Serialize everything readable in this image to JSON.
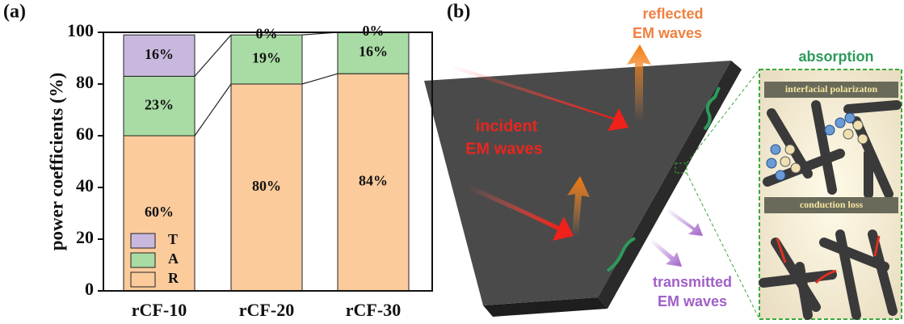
{
  "chart_data": {
    "type": "bar",
    "stacked": true,
    "panel_label": "(a)",
    "ylabel": "power coefficients (%)",
    "categories": [
      "rCF-10",
      "rCF-20",
      "rCF-30"
    ],
    "series": [
      {
        "name": "R",
        "color": "#fccb9c",
        "values": [
          60,
          80,
          84
        ],
        "value_labels": [
          "60%",
          "80%",
          "84%"
        ]
      },
      {
        "name": "A",
        "color": "#a8dca4",
        "values": [
          23,
          19,
          16
        ],
        "value_labels": [
          "23%",
          "19%",
          "16%"
        ]
      },
      {
        "name": "T",
        "color": "#c9b8de",
        "values": [
          16,
          0,
          0
        ],
        "value_labels": [
          "16%",
          "0%",
          "0%"
        ]
      }
    ],
    "ylim": [
      0,
      100
    ],
    "yticks": [
      0,
      20,
      40,
      60,
      80,
      100
    ],
    "legend": "lower left"
  },
  "diagram": {
    "panel_label": "(b)",
    "reflected": [
      "reflected",
      "EM waves"
    ],
    "incident": [
      "incident",
      "EM waves"
    ],
    "transmitted": [
      "transmitted",
      "EM waves"
    ],
    "absorption": "absorption",
    "polarization": "interfacial polarizaton",
    "conduction": "conduction loss"
  }
}
